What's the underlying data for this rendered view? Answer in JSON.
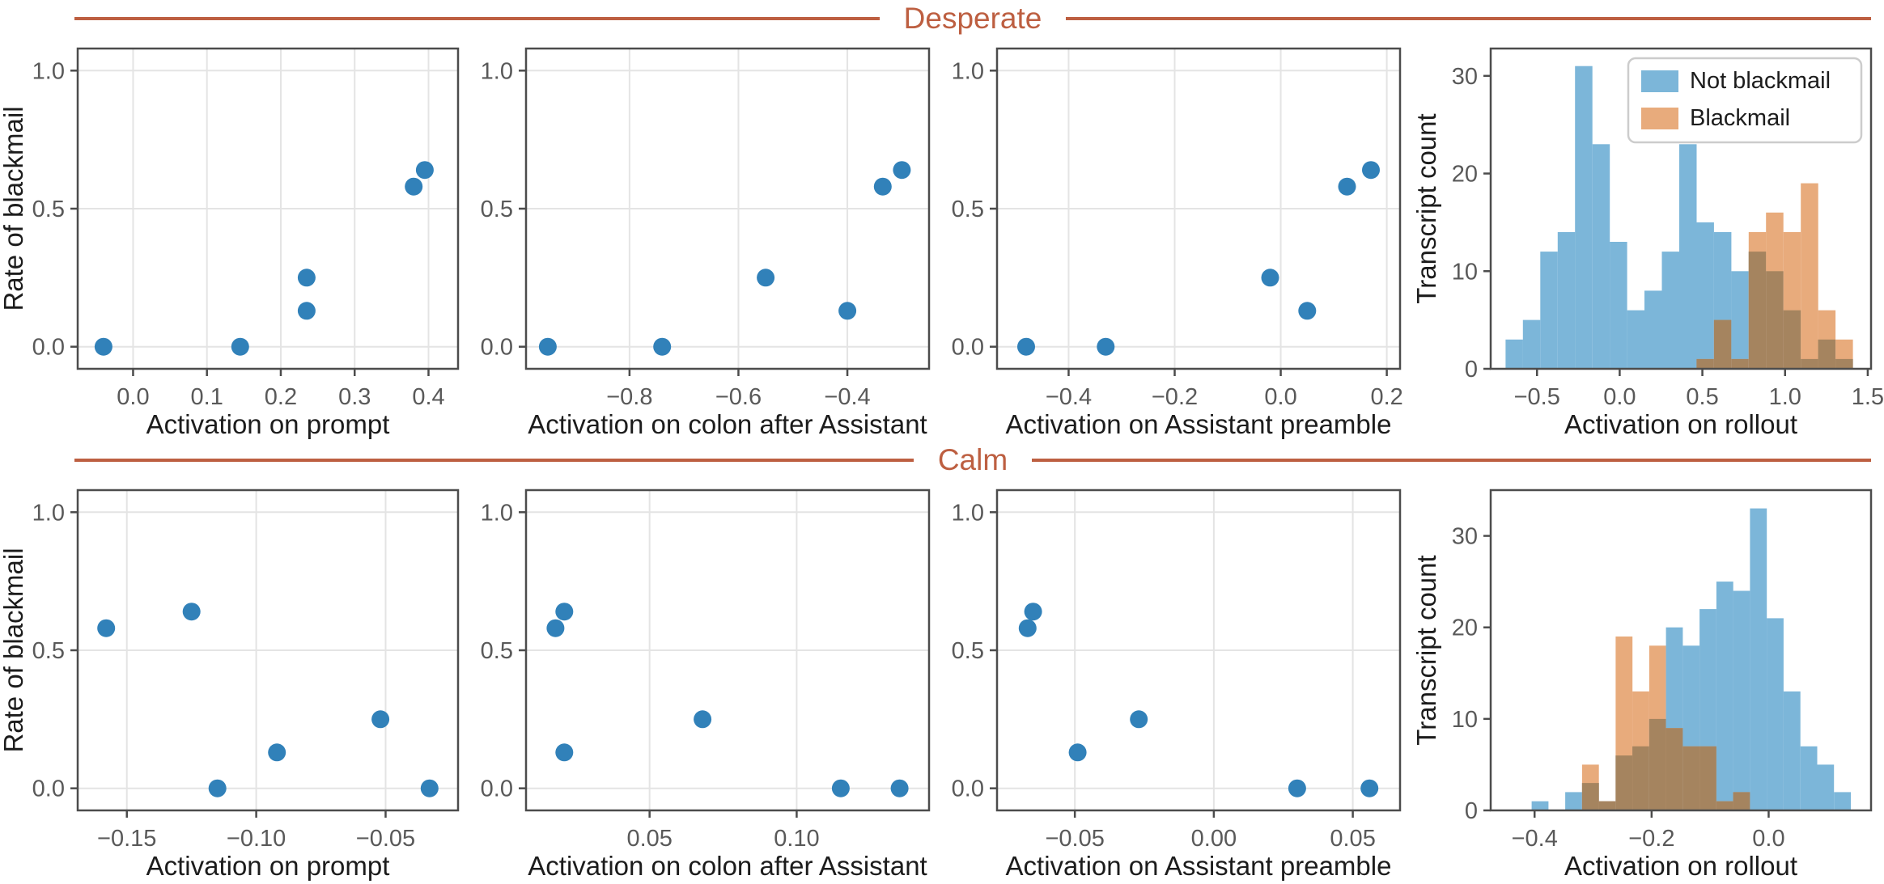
{
  "colors": {
    "accent": "#bd5f41",
    "scatter_dot": "#3181b9",
    "hist_not_blackmail": "#7cb6d9",
    "hist_blackmail": "#e8ab7c",
    "hist_overlap": "#a5845f",
    "frame": "#4c4c4c",
    "grid": "#e4e4e4",
    "tick_label": "#595959",
    "axis_label": "#1c1c1c",
    "legend_border": "#cccccc",
    "background": "#ffffff"
  },
  "chart_data": {
    "rows": [
      {
        "title": "Desperate",
        "plots": [
          {
            "id": "desperate-activation-on-prompt",
            "type": "scatter",
            "xlabel": "Activation on prompt",
            "ylabel": "Rate of blackmail",
            "xlim": [
              -0.075,
              0.44
            ],
            "ylim": [
              -0.08,
              1.08
            ],
            "xticks": [
              {
                "v": 0.0,
                "label": "0.0"
              },
              {
                "v": 0.1,
                "label": "0.1"
              },
              {
                "v": 0.2,
                "label": "0.2"
              },
              {
                "v": 0.3,
                "label": "0.3"
              },
              {
                "v": 0.4,
                "label": "0.4"
              }
            ],
            "yticks": [
              {
                "v": 0.0,
                "label": "0.0"
              },
              {
                "v": 0.5,
                "label": "0.5"
              },
              {
                "v": 1.0,
                "label": "1.0"
              }
            ],
            "points": [
              [
                -0.04,
                0.0
              ],
              [
                0.145,
                0.0
              ],
              [
                0.235,
                0.13
              ],
              [
                0.235,
                0.25
              ],
              [
                0.38,
                0.58
              ],
              [
                0.395,
                0.64
              ]
            ]
          },
          {
            "id": "desperate-activation-on-colon-after-assistant",
            "type": "scatter",
            "xlabel": "Activation on colon after Assistant",
            "xlim": [
              -0.99,
              -0.25
            ],
            "ylim": [
              -0.08,
              1.08
            ],
            "xticks": [
              {
                "v": -0.8,
                "label": "−0.8"
              },
              {
                "v": -0.6,
                "label": "−0.6"
              },
              {
                "v": -0.4,
                "label": "−0.4"
              }
            ],
            "yticks": [
              {
                "v": 0.0,
                "label": "0.0"
              },
              {
                "v": 0.5,
                "label": "0.5"
              },
              {
                "v": 1.0,
                "label": "1.0"
              }
            ],
            "points": [
              [
                -0.95,
                0.0
              ],
              [
                -0.74,
                0.0
              ],
              [
                -0.4,
                0.13
              ],
              [
                -0.55,
                0.25
              ],
              [
                -0.335,
                0.58
              ],
              [
                -0.3,
                0.64
              ]
            ]
          },
          {
            "id": "desperate-activation-on-assistant-preamble",
            "type": "scatter",
            "xlabel": "Activation on Assistant preamble",
            "xlim": [
              -0.535,
              0.225
            ],
            "ylim": [
              -0.08,
              1.08
            ],
            "xticks": [
              {
                "v": -0.4,
                "label": "−0.4"
              },
              {
                "v": -0.2,
                "label": "−0.2"
              },
              {
                "v": 0.0,
                "label": "0.0"
              },
              {
                "v": 0.2,
                "label": "0.2"
              }
            ],
            "yticks": [
              {
                "v": 0.0,
                "label": "0.0"
              },
              {
                "v": 0.5,
                "label": "0.5"
              },
              {
                "v": 1.0,
                "label": "1.0"
              }
            ],
            "points": [
              [
                -0.48,
                0.0
              ],
              [
                -0.33,
                0.0
              ],
              [
                0.05,
                0.13
              ],
              [
                -0.02,
                0.25
              ],
              [
                0.125,
                0.58
              ],
              [
                0.17,
                0.64
              ]
            ]
          },
          {
            "id": "desperate-activation-on-rollout",
            "type": "hist",
            "xlabel": "Activation on rollout",
            "ylabel": "Transcript count",
            "xlim": [
              -0.78,
              1.52
            ],
            "ylim": [
              0,
              32.8
            ],
            "xticks": [
              {
                "v": -0.5,
                "label": "−0.5"
              },
              {
                "v": 0.0,
                "label": "0.0"
              },
              {
                "v": 0.5,
                "label": "0.5"
              },
              {
                "v": 1.0,
                "label": "1.0"
              },
              {
                "v": 1.5,
                "label": "1.5"
              }
            ],
            "yticks": [
              {
                "v": 0,
                "label": "0"
              },
              {
                "v": 10,
                "label": "10"
              },
              {
                "v": 20,
                "label": "20"
              },
              {
                "v": 30,
                "label": "30"
              }
            ],
            "bin_start": -0.69,
            "bin_width": 0.105,
            "series": [
              {
                "name": "Not blackmail",
                "values": [
                  3,
                  5,
                  12,
                  14,
                  31,
                  23,
                  13,
                  6,
                  8,
                  12,
                  23,
                  15,
                  14,
                  10,
                  12,
                  10,
                  6,
                  1,
                  3,
                  1
                ]
              },
              {
                "name": "Blackmail",
                "values": [
                  0,
                  0,
                  0,
                  0,
                  0,
                  0,
                  0,
                  0,
                  0,
                  0,
                  0,
                  1,
                  5,
                  1,
                  14,
                  16,
                  14,
                  19,
                  6,
                  3
                ]
              }
            ],
            "legend": [
              {
                "label": "Not blackmail",
                "color": "#7cb6d9"
              },
              {
                "label": "Blackmail",
                "color": "#e8ab7c"
              }
            ]
          }
        ]
      },
      {
        "title": "Calm",
        "plots": [
          {
            "id": "calm-activation-on-prompt",
            "type": "scatter",
            "xlabel": "Activation on prompt",
            "ylabel": "Rate of blackmail",
            "xlim": [
              -0.169,
              -0.022
            ],
            "ylim": [
              -0.08,
              1.08
            ],
            "xticks": [
              {
                "v": -0.15,
                "label": "−0.15"
              },
              {
                "v": -0.1,
                "label": "−0.10"
              },
              {
                "v": -0.05,
                "label": "−0.05"
              }
            ],
            "yticks": [
              {
                "v": 0.0,
                "label": "0.0"
              },
              {
                "v": 0.5,
                "label": "0.5"
              },
              {
                "v": 1.0,
                "label": "1.0"
              }
            ],
            "points": [
              [
                -0.115,
                0.0
              ],
              [
                -0.033,
                0.0
              ],
              [
                -0.092,
                0.13
              ],
              [
                -0.052,
                0.25
              ],
              [
                -0.158,
                0.58
              ],
              [
                -0.125,
                0.64
              ]
            ]
          },
          {
            "id": "calm-activation-on-colon-after-assistant",
            "type": "scatter",
            "xlabel": "Activation on colon after Assistant",
            "xlim": [
              0.008,
              0.145
            ],
            "ylim": [
              -0.08,
              1.08
            ],
            "xticks": [
              {
                "v": 0.05,
                "label": "0.05"
              },
              {
                "v": 0.1,
                "label": "0.10"
              }
            ],
            "yticks": [
              {
                "v": 0.0,
                "label": "0.0"
              },
              {
                "v": 0.5,
                "label": "0.5"
              },
              {
                "v": 1.0,
                "label": "1.0"
              }
            ],
            "points": [
              [
                0.115,
                0.0
              ],
              [
                0.135,
                0.0
              ],
              [
                0.021,
                0.13
              ],
              [
                0.068,
                0.25
              ],
              [
                0.018,
                0.58
              ],
              [
                0.021,
                0.64
              ]
            ]
          },
          {
            "id": "calm-activation-on-assistant-preamble",
            "type": "scatter",
            "xlabel": "Activation on Assistant preamble",
            "xlim": [
              -0.078,
              0.067
            ],
            "ylim": [
              -0.08,
              1.08
            ],
            "xticks": [
              {
                "v": -0.05,
                "label": "−0.05"
              },
              {
                "v": 0.0,
                "label": "0.00"
              },
              {
                "v": 0.05,
                "label": "0.05"
              }
            ],
            "yticks": [
              {
                "v": 0.0,
                "label": "0.0"
              },
              {
                "v": 0.5,
                "label": "0.5"
              },
              {
                "v": 1.0,
                "label": "1.0"
              }
            ],
            "points": [
              [
                0.03,
                0.0
              ],
              [
                0.056,
                0.0
              ],
              [
                -0.049,
                0.13
              ],
              [
                -0.027,
                0.25
              ],
              [
                -0.067,
                0.58
              ],
              [
                -0.065,
                0.64
              ]
            ]
          },
          {
            "id": "calm-activation-on-rollout",
            "type": "hist",
            "xlabel": "Activation on rollout",
            "ylabel": "Transcript count",
            "xlim": [
              -0.475,
              0.175
            ],
            "ylim": [
              0,
              35
            ],
            "xticks": [
              {
                "v": -0.4,
                "label": "−0.4"
              },
              {
                "v": -0.2,
                "label": "−0.2"
              },
              {
                "v": 0.0,
                "label": "0.0"
              }
            ],
            "yticks": [
              {
                "v": 0,
                "label": "0"
              },
              {
                "v": 10,
                "label": "10"
              },
              {
                "v": 20,
                "label": "20"
              },
              {
                "v": 30,
                "label": "30"
              }
            ],
            "bin_start": -0.405,
            "bin_width": 0.0287,
            "series": [
              {
                "name": "Not blackmail",
                "values": [
                  1,
                  0,
                  2,
                  3,
                  1,
                  6,
                  7,
                  10,
                  20,
                  18,
                  22,
                  25,
                  24,
                  33,
                  21,
                  13,
                  7,
                  5,
                  2
                ]
              },
              {
                "name": "Blackmail",
                "values": [
                  0,
                  0,
                  0,
                  5,
                  1,
                  19,
                  13,
                  18,
                  9,
                  7,
                  7,
                  1,
                  2,
                  0,
                  0,
                  0,
                  0,
                  0,
                  0
                ]
              }
            ]
          }
        ]
      }
    ]
  }
}
